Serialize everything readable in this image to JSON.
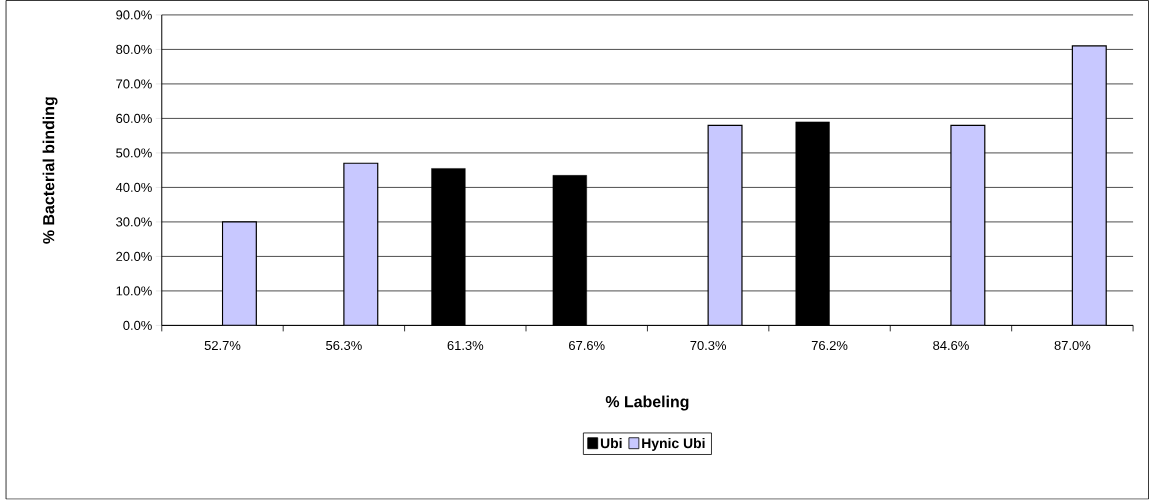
{
  "chart_data": {
    "type": "bar",
    "xlabel": "% Labeling",
    "ylabel": "% Bacterial binding",
    "categories": [
      "52.7%",
      "56.3%",
      "61.3%",
      "67.6%",
      "70.3%",
      "76.2%",
      "84.6%",
      "87.0%"
    ],
    "series": [
      {
        "name": "Ubi",
        "color": "#000000",
        "values": [
          null,
          null,
          45.5,
          43.5,
          null,
          59,
          null,
          null
        ]
      },
      {
        "name": "Hynic Ubi",
        "color": "#c8c8ff",
        "values": [
          30,
          47,
          null,
          null,
          58,
          null,
          58,
          81
        ]
      }
    ],
    "ylim": [
      0,
      90
    ],
    "yticks": [
      {
        "value": 0,
        "label": "0.0%"
      },
      {
        "value": 10,
        "label": "10.0%"
      },
      {
        "value": 20,
        "label": "20.0%"
      },
      {
        "value": 30,
        "label": "30.0%"
      },
      {
        "value": 40,
        "label": "40.0%"
      },
      {
        "value": 50,
        "label": "50.0%"
      },
      {
        "value": 60,
        "label": "60.0%"
      },
      {
        "value": 70,
        "label": "70.0%"
      },
      {
        "value": 80,
        "label": "80.0%"
      },
      {
        "value": 90,
        "label": "90.0%"
      }
    ],
    "grid": "y",
    "legend": "bottom"
  }
}
